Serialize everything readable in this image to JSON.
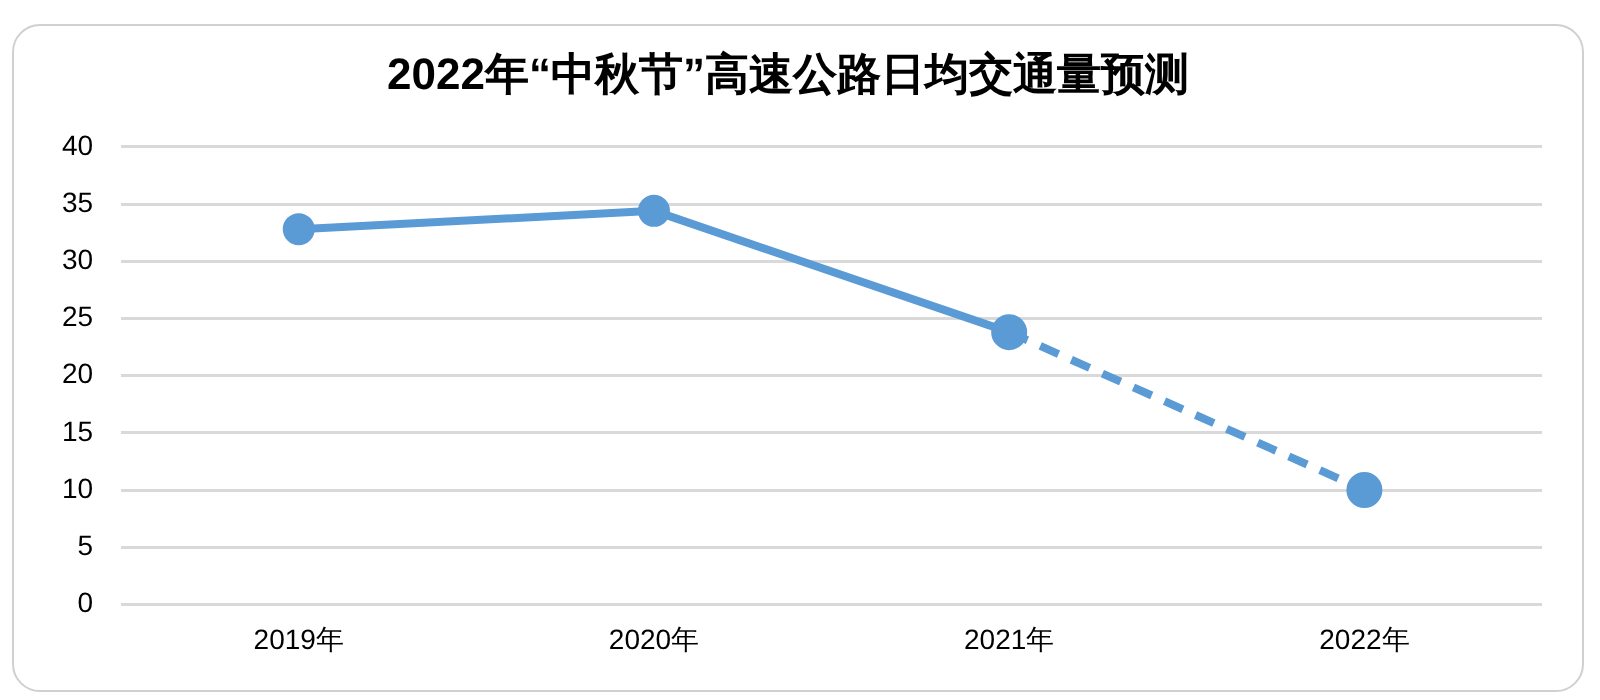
{
  "chart_data": {
    "type": "line",
    "title": "2022年“中秋节”高速公路日均交通量预测",
    "categories": [
      "2019年",
      "2020年",
      "2021年",
      "2022年"
    ],
    "series": [
      {
        "color": "#5b9bd5",
        "values": [
          32.8,
          34.4,
          23.8,
          null
        ],
        "line_style": "solid"
      },
      {
        "color": "#5b9bd5",
        "values": [
          null,
          null,
          23.8,
          10
        ],
        "line_style": "dashed"
      }
    ],
    "ylim": [
      0,
      40
    ],
    "yticks": [
      0,
      5,
      10,
      15,
      20,
      25,
      30,
      35,
      40
    ],
    "grid": "y",
    "legend": false,
    "marker": "circle"
  }
}
